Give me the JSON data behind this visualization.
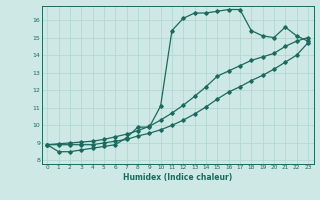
{
  "xlabel": "Humidex (Indice chaleur)",
  "bg_color": "#cde8e5",
  "line_color": "#1a6b5e",
  "grid_color": "#afd4cf",
  "xlim": [
    -0.5,
    23.5
  ],
  "ylim": [
    7.8,
    16.8
  ],
  "xticks": [
    0,
    1,
    2,
    3,
    4,
    5,
    6,
    7,
    8,
    9,
    10,
    11,
    12,
    13,
    14,
    15,
    16,
    17,
    18,
    19,
    20,
    21,
    22,
    23
  ],
  "yticks": [
    8,
    9,
    10,
    11,
    12,
    13,
    14,
    15,
    16
  ],
  "line1_x": [
    0,
    1,
    2,
    3,
    4,
    5,
    6,
    7,
    8,
    9,
    10,
    11,
    12,
    13,
    14,
    15,
    16,
    17,
    18,
    19,
    20,
    21,
    22,
    23
  ],
  "line1_y": [
    8.9,
    8.5,
    8.5,
    8.6,
    8.7,
    8.8,
    8.9,
    9.3,
    9.9,
    9.9,
    11.1,
    15.4,
    16.1,
    16.4,
    16.4,
    16.5,
    16.6,
    16.6,
    15.4,
    15.1,
    15.0,
    15.6,
    15.1,
    14.8
  ],
  "line2_x": [
    0,
    1,
    2,
    3,
    4,
    5,
    6,
    7,
    8,
    9,
    10,
    11,
    12,
    13,
    14,
    15,
    16,
    17,
    18,
    19,
    20,
    21,
    22,
    23
  ],
  "line2_y": [
    8.9,
    8.95,
    9.0,
    9.05,
    9.1,
    9.2,
    9.35,
    9.5,
    9.7,
    9.95,
    10.3,
    10.7,
    11.15,
    11.65,
    12.2,
    12.8,
    13.1,
    13.4,
    13.7,
    13.9,
    14.1,
    14.5,
    14.8,
    15.0
  ],
  "line3_x": [
    0,
    1,
    2,
    3,
    4,
    5,
    6,
    7,
    8,
    9,
    10,
    11,
    12,
    13,
    14,
    15,
    16,
    17,
    18,
    19,
    20,
    21,
    22,
    23
  ],
  "line3_y": [
    8.9,
    8.9,
    8.9,
    8.9,
    8.9,
    9.0,
    9.1,
    9.2,
    9.4,
    9.55,
    9.75,
    10.0,
    10.3,
    10.65,
    11.05,
    11.5,
    11.9,
    12.2,
    12.55,
    12.85,
    13.2,
    13.6,
    14.0,
    14.7
  ]
}
